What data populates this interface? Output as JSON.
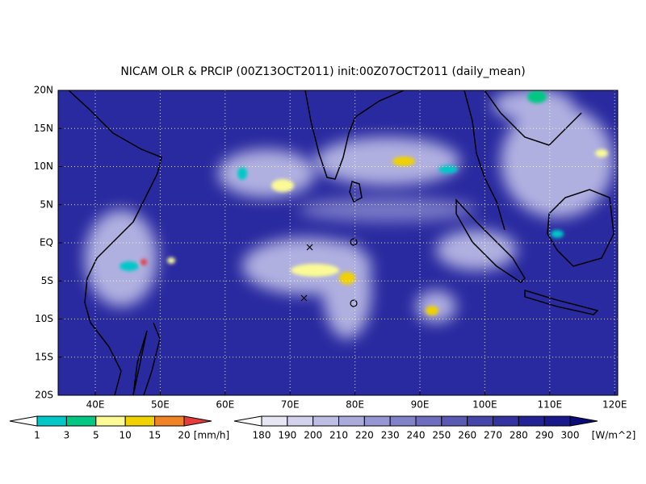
{
  "title": "NICAM OLR & PRCIP (00Z13OCT2011) init:00Z07OCT2011 (daily_mean)",
  "map": {
    "lon_labels": [
      "40E",
      "50E",
      "60E",
      "70E",
      "80E",
      "90E",
      "100E",
      "110E",
      "120E"
    ],
    "lat_labels": [
      "20N",
      "15N",
      "10N",
      "5N",
      "EQ",
      "5S",
      "10S",
      "15S",
      "20S"
    ]
  },
  "precip_colorbar": {
    "labels": [
      "1",
      "3",
      "5",
      "10",
      "15",
      "20"
    ],
    "unit": "[mm/h]",
    "colors": [
      "#ffffff",
      "#00c8c8",
      "#00c882",
      "#fafa96",
      "#f0d200",
      "#f08228",
      "#e63c3c"
    ]
  },
  "olr_colorbar": {
    "labels": [
      "180",
      "190",
      "200",
      "210",
      "220",
      "230",
      "240",
      "250",
      "260",
      "270",
      "280",
      "290",
      "300"
    ],
    "unit": "[W/m^2]",
    "colors": [
      "#ffffff",
      "#e6e6f5",
      "#d2d2ec",
      "#bebee3",
      "#aaaadb",
      "#9696d2",
      "#8282c8",
      "#6e6ebe",
      "#5a5ab4",
      "#4646aa",
      "#3232a0",
      "#232396",
      "#19198c",
      "#14147d",
      "#0a0a78"
    ]
  }
}
